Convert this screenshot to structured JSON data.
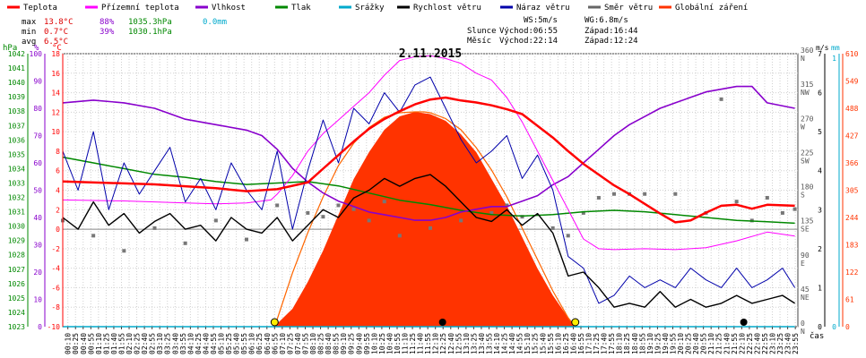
{
  "chart_data": {
    "type": "line",
    "title": "2.11.2015",
    "x_axis_label": "čas",
    "x_tick_labels": [
      "00:10",
      "00:25",
      "00:40",
      "00:55",
      "01:10",
      "01:25",
      "01:40",
      "01:55",
      "02:10",
      "02:25",
      "02:40",
      "02:55",
      "03:10",
      "03:25",
      "03:40",
      "03:55",
      "04:10",
      "04:25",
      "04:40",
      "04:55",
      "05:10",
      "05:25",
      "05:40",
      "05:55",
      "06:10",
      "06:25",
      "06:40",
      "06:55",
      "07:10",
      "07:25",
      "07:40",
      "07:55",
      "08:10",
      "08:25",
      "08:40",
      "08:55",
      "09:10",
      "09:25",
      "09:40",
      "09:55",
      "10:10",
      "10:25",
      "10:40",
      "10:55",
      "11:10",
      "11:25",
      "11:40",
      "11:55",
      "12:10",
      "12:25",
      "12:40",
      "12:55",
      "13:10",
      "13:25",
      "13:40",
      "13:55",
      "14:10",
      "14:25",
      "14:40",
      "14:55",
      "15:10",
      "15:25",
      "15:40",
      "15:55",
      "16:10",
      "16:25",
      "16:40",
      "16:55",
      "17:10",
      "17:25",
      "17:40",
      "17:55",
      "18:10",
      "18:25",
      "18:40",
      "18:55",
      "19:10",
      "19:25",
      "19:40",
      "19:55",
      "20:10",
      "20:25",
      "20:40",
      "20:55",
      "21:10",
      "21:25",
      "21:40",
      "21:55",
      "22:10",
      "22:25",
      "22:40",
      "22:55",
      "23:10",
      "23:25",
      "23:40",
      "23:55"
    ],
    "legend": [
      {
        "name": "Teplota",
        "color": "#ff0000"
      },
      {
        "name": "Přízemní teplota",
        "color": "#ff00ff"
      },
      {
        "name": "Vlhkost",
        "color": "#8800cc"
      },
      {
        "name": "Tlak",
        "color": "#008800"
      },
      {
        "name": "Srážky",
        "color": "#00aacc"
      },
      {
        "name": "Rychlost větru",
        "color": "#000000"
      },
      {
        "name": "Náraz větru",
        "color": "#0000aa"
      },
      {
        "name": "Směr větru",
        "color": "#666666"
      },
      {
        "name": "Globální záření",
        "color": "#ff3300"
      }
    ],
    "stats": [
      {
        "label": "max",
        "temp": "13.8°C",
        "hum": "88%",
        "press": "1035.3hPa",
        "rain": "0.0mm"
      },
      {
        "label": "min",
        "temp": "0.7°C",
        "hum": "39%",
        "press": "1030.1hPa",
        "rain": ""
      },
      {
        "label": "avg",
        "temp": "6.5°C",
        "hum": "",
        "press": "",
        "rain": ""
      }
    ],
    "info": {
      "ws": "WS:5m/s",
      "wg": "WG:6.8m/s",
      "sun_label": "Slunce",
      "sun_rise": "Východ:06:55",
      "sun_set": "Západ:16:44",
      "moon_label": "Měsíc",
      "moon_rise": "Východ:22:14",
      "moon_set": "Západ:12:24"
    },
    "axes": {
      "hpa": {
        "unit": "hPa",
        "min": 1023,
        "max": 1042,
        "ticks": [
          1023,
          1024,
          1025,
          1026,
          1027,
          1028,
          1029,
          1030,
          1031,
          1032,
          1033,
          1034,
          1035,
          1036,
          1037,
          1038,
          1039,
          1040,
          1041,
          1042
        ]
      },
      "percent": {
        "unit": "%",
        "min": 0,
        "max": 100,
        "ticks": [
          0,
          10,
          20,
          30,
          40,
          50,
          60,
          70,
          80,
          90,
          100
        ]
      },
      "celsius": {
        "unit": "°C",
        "min": -10,
        "max": 18,
        "ticks": [
          -10,
          -8,
          -6,
          -4,
          -2,
          0,
          2,
          4,
          6,
          8,
          10,
          12,
          14,
          16,
          18
        ]
      },
      "wind_dir": {
        "ticks": [
          "0 N",
          "45 NE",
          "90 E",
          "135 SE",
          "180 S",
          "225 SW",
          "270 W",
          "315 NW",
          "360 N"
        ]
      },
      "ms": {
        "unit": "m/s",
        "ticks": [
          0,
          1,
          2,
          3,
          4,
          5,
          6,
          7
        ]
      },
      "mm": {
        "unit": "mm",
        "ticks": [
          0,
          1
        ]
      },
      "wm2": {
        "ticks": [
          0,
          61,
          122,
          183,
          244,
          305,
          366,
          427,
          488,
          549,
          610
        ]
      }
    },
    "series": {
      "temperature": {
        "t": [
          0,
          3,
          5,
          6,
          7,
          8,
          8.5,
          9,
          9.5,
          10,
          10.5,
          11,
          11.5,
          12,
          12.5,
          13,
          13.5,
          14,
          14.5,
          15,
          15.5,
          16,
          16.5,
          17,
          17.5,
          18,
          18.5,
          19,
          19.5,
          20,
          20.5,
          21,
          21.5,
          22,
          22.5,
          23,
          23.9
        ],
        "v": [
          4.9,
          4.6,
          4.2,
          3.9,
          4.1,
          4.8,
          6.2,
          7.6,
          9.0,
          10.3,
          11.3,
          12.1,
          12.8,
          13.3,
          13.5,
          13.2,
          13.0,
          12.7,
          12.3,
          11.8,
          10.6,
          9.4,
          8.0,
          6.7,
          5.6,
          4.5,
          3.6,
          2.6,
          1.6,
          0.7,
          0.9,
          1.7,
          2.4,
          2.5,
          2.1,
          2.5,
          2.4
        ]
      },
      "ground_temperature": {
        "t": [
          0,
          2,
          4,
          5,
          6,
          6.8,
          7,
          7.5,
          8,
          8.5,
          9,
          9.5,
          10,
          10.5,
          11,
          11.5,
          12,
          12.5,
          13,
          13.5,
          14,
          14.5,
          15,
          15.5,
          16,
          16.5,
          17,
          17.5,
          18,
          19,
          20,
          21,
          22,
          23,
          23.9
        ],
        "v": [
          3.0,
          2.9,
          2.7,
          2.6,
          2.7,
          3.0,
          3.6,
          5.5,
          8.0,
          9.8,
          11.2,
          12.6,
          14.0,
          15.8,
          17.3,
          17.7,
          17.8,
          17.5,
          17.0,
          16.0,
          15.3,
          13.5,
          11.0,
          8.0,
          5.0,
          2.0,
          -1.0,
          -2.0,
          -2.1,
          -2.0,
          -2.1,
          -1.9,
          -1.2,
          -0.3,
          -0.7
        ]
      },
      "humidity": {
        "t": [
          0,
          1,
          2,
          3,
          4,
          5,
          6,
          6.5,
          7,
          7.5,
          8,
          8.5,
          9,
          9.5,
          10,
          10.5,
          11,
          11.5,
          12,
          12.5,
          13,
          13.5,
          14,
          14.5,
          15,
          15.5,
          16,
          16.5,
          17,
          17.5,
          18,
          18.5,
          19,
          19.5,
          20,
          20.5,
          21,
          22,
          22.5,
          23,
          23.9
        ],
        "v": [
          82,
          83,
          82,
          80,
          76,
          74,
          72,
          70,
          65,
          58,
          53,
          49,
          46,
          44,
          42,
          41,
          40,
          39,
          39,
          40,
          42,
          43,
          44,
          44,
          46,
          48,
          52,
          55,
          60,
          65,
          70,
          74,
          77,
          80,
          82,
          84,
          86,
          88,
          88,
          82,
          80
        ]
      },
      "pressure": {
        "t": [
          0,
          1,
          2,
          3,
          4,
          5,
          6,
          7,
          8,
          9,
          10,
          11,
          12,
          13,
          14,
          15,
          16,
          17,
          18,
          19,
          20,
          21,
          22,
          23,
          23.9
        ],
        "v": [
          1034.8,
          1034.4,
          1034.0,
          1033.6,
          1033.4,
          1033.1,
          1032.9,
          1033.0,
          1033.1,
          1032.8,
          1032.3,
          1031.8,
          1031.5,
          1031.1,
          1030.8,
          1030.7,
          1030.8,
          1031.0,
          1031.1,
          1031.0,
          1030.8,
          1030.6,
          1030.4,
          1030.3,
          1030.2
        ]
      },
      "solar_radiation": {
        "t": [
          6.9,
          7.5,
          8,
          8.5,
          9,
          9.5,
          10,
          10.5,
          11,
          11.5,
          12,
          12.5,
          13,
          13.5,
          14,
          14.5,
          15,
          15.5,
          16,
          16.5,
          16.74
        ],
        "v": [
          0,
          40,
          100,
          170,
          250,
          330,
          390,
          440,
          470,
          480,
          475,
          460,
          430,
          390,
          330,
          270,
          200,
          130,
          70,
          20,
          0
        ]
      },
      "theoretical_radiation": {
        "t": [
          6.92,
          7.5,
          8,
          8.5,
          9,
          9.5,
          10,
          10.5,
          11,
          11.5,
          11.8,
          12,
          12.5,
          13,
          13.5,
          14,
          14.5,
          15,
          15.5,
          16,
          16.5,
          16.73
        ],
        "v": [
          0,
          120,
          210,
          290,
          360,
          410,
          445,
          468,
          478,
          480,
          480,
          478,
          465,
          440,
          400,
          350,
          290,
          220,
          150,
          80,
          20,
          0
        ]
      },
      "wind_speed": {
        "t": [
          0,
          0.5,
          1,
          1.5,
          2,
          2.5,
          3,
          3.5,
          4,
          4.5,
          5,
          5.5,
          6,
          6.5,
          7,
          7.5,
          8,
          8.5,
          9,
          9.5,
          10,
          10.5,
          11,
          11.5,
          12,
          12.5,
          13,
          13.5,
          14,
          14.5,
          15,
          15.5,
          16,
          16.5,
          17,
          17.5,
          18,
          18.5,
          19,
          19.5,
          20,
          20.5,
          21,
          21.5,
          22,
          22.5,
          23,
          23.5,
          23.9
        ],
        "v": [
          2.8,
          2.5,
          3.2,
          2.6,
          2.9,
          2.4,
          2.7,
          2.9,
          2.5,
          2.6,
          2.2,
          2.8,
          2.5,
          2.4,
          2.8,
          2.2,
          2.6,
          3.0,
          2.8,
          3.3,
          3.5,
          3.8,
          3.6,
          3.8,
          3.9,
          3.6,
          3.2,
          2.8,
          2.7,
          3.0,
          2.6,
          2.9,
          2.4,
          1.3,
          1.4,
          1.0,
          0.5,
          0.6,
          0.5,
          0.9,
          0.5,
          0.7,
          0.5,
          0.6,
          0.8,
          0.6,
          0.7,
          0.8,
          0.6
        ]
      },
      "wind_gust": {
        "t": [
          0,
          0.5,
          1,
          1.5,
          2,
          2.5,
          3,
          3.5,
          4,
          4.5,
          5,
          5.5,
          6,
          6.5,
          7,
          7.5,
          8,
          8.5,
          9,
          9.5,
          10,
          10.5,
          11,
          11.5,
          12,
          12.5,
          13,
          13.5,
          14,
          14.5,
          15,
          15.5,
          16,
          16.5,
          17,
          17.5,
          18,
          18.5,
          19,
          19.5,
          20,
          20.5,
          21,
          21.5,
          22,
          22.5,
          23,
          23.5,
          23.9
        ],
        "v": [
          4.5,
          3.5,
          5.0,
          3.0,
          4.2,
          3.4,
          4.0,
          4.6,
          3.2,
          3.8,
          3.0,
          4.2,
          3.5,
          3.0,
          4.5,
          2.5,
          4.0,
          5.3,
          4.2,
          5.6,
          5.2,
          6.0,
          5.5,
          6.2,
          6.4,
          5.6,
          4.8,
          4.2,
          4.5,
          4.9,
          3.8,
          4.4,
          3.5,
          1.8,
          1.5,
          0.6,
          0.8,
          1.3,
          1.0,
          1.2,
          1.0,
          1.5,
          1.2,
          1.0,
          1.5,
          1.0,
          1.2,
          1.5,
          1.0
        ]
      },
      "wind_direction": {
        "t": [
          0,
          1,
          2,
          3,
          4,
          5,
          6,
          7,
          8,
          8.5,
          9,
          9.5,
          10,
          10.5,
          11,
          12,
          13,
          14,
          14.5,
          15,
          16,
          16.5,
          17,
          17.5,
          18,
          18.5,
          19,
          20,
          21,
          21.5,
          22,
          22.5,
          23,
          23.5,
          23.9
        ],
        "v": [
          140,
          120,
          100,
          130,
          110,
          140,
          115,
          160,
          150,
          145,
          160,
          155,
          140,
          165,
          120,
          130,
          140,
          150,
          160,
          145,
          130,
          120,
          150,
          170,
          175,
          175,
          175,
          175,
          150,
          300,
          165,
          140,
          170,
          150,
          155
        ]
      },
      "rain": {
        "t": [
          0,
          23.9
        ],
        "v": [
          0,
          0
        ]
      }
    },
    "markers": {
      "sunrise": "06:55",
      "sunset": "16:44",
      "moonrise": "22:14",
      "moonset": "12:24"
    },
    "grid": true
  }
}
